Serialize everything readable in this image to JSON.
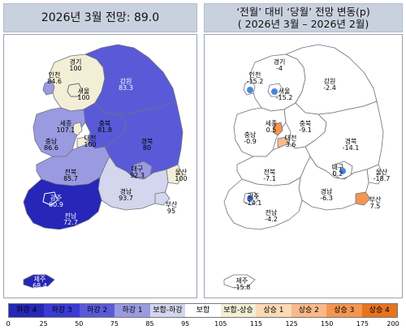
{
  "left_title": "2026년 3월 전망: 89.0",
  "right_title_line1": "‘전월’ 대비 ‘당월’ 전망 변동(p)",
  "right_title_line2": "( 2026년 3월 –   2026년 2월)",
  "colors": {
    "ha4": "#2626b8",
    "ha3": "#3a3ad4",
    "ha2": "#5a5ad8",
    "ha1": "#9a9ae0",
    "bh_ha": "#d3d6ec",
    "bh": "#ffffff",
    "bh_up": "#f3efd6",
    "up1": "#fbd9b5",
    "up2": "#f9b989",
    "up3": "#f59552",
    "up4": "#e8731e",
    "outline": "#7b7b8c",
    "label_blue": "#2f6fd6"
  },
  "legend": {
    "cells": [
      "하강 4",
      "하강 3",
      "하강 2",
      "하강 1",
      "보합-하강",
      "보합",
      "보합-상승",
      "상승 1",
      "상승 2",
      "상승 3",
      "상승 4"
    ],
    "ticks": [
      "0",
      "25",
      "50",
      "75",
      "85",
      "95",
      "105",
      "115",
      "125",
      "150",
      "175",
      "200"
    ]
  },
  "regions_left": {
    "incheon": {
      "name": "인천",
      "value": "84.6"
    },
    "seoul": {
      "name": "서울",
      "value": "100"
    },
    "gyeonggi": {
      "name": "경기",
      "value": "100"
    },
    "gangwon": {
      "name": "강원",
      "value": "83.3"
    },
    "sejong": {
      "name": "세종",
      "value": "107.1"
    },
    "chungbuk": {
      "name": "충북",
      "value": "81.8"
    },
    "chungnam": {
      "name": "충남",
      "value": "86.6"
    },
    "daejeon": {
      "name": "대전",
      "value": "100"
    },
    "gyeongbuk": {
      "name": "경북",
      "value": "80"
    },
    "daegu": {
      "name": "대구",
      "value": "92.3"
    },
    "jeonbuk": {
      "name": "전북",
      "value": "85.7"
    },
    "ulsan": {
      "name": "울산",
      "value": "100"
    },
    "gwangju": {
      "name": "광주",
      "value": "80.9"
    },
    "gyeongnam": {
      "name": "경남",
      "value": "93.7"
    },
    "busan": {
      "name": "부산",
      "value": "95"
    },
    "jeonnam": {
      "name": "전남",
      "value": "72.7"
    },
    "jeju": {
      "name": "제주",
      "value": "68.4"
    }
  },
  "regions_right": {
    "incheon": {
      "name": "인천",
      "value": "-15.2"
    },
    "seoul": {
      "name": "서울",
      "value": "-15.2"
    },
    "gyeonggi": {
      "name": "경기",
      "value": "-4"
    },
    "gangwon": {
      "name": "강원",
      "value": "-2.4"
    },
    "sejong": {
      "name": "세종",
      "value": "0.5"
    },
    "chungbuk": {
      "name": "충북",
      "value": "-9.1"
    },
    "chungnam": {
      "name": "충남",
      "value": "-0.9"
    },
    "daejeon": {
      "name": "대전",
      "value": "3.6"
    },
    "gyeongbuk": {
      "name": "경북",
      "value": "-14.1"
    },
    "daegu": {
      "name": "대구",
      "value": "0.2"
    },
    "jeonbuk": {
      "name": "전북",
      "value": "-7.1"
    },
    "ulsan": {
      "name": "울산",
      "value": "-18.7"
    },
    "gwangju": {
      "name": "광주",
      "value": "-14.1"
    },
    "gyeongnam": {
      "name": "경남",
      "value": "-6.3"
    },
    "busan": {
      "name": "부산",
      "value": "7.5"
    },
    "jeonnam": {
      "name": "전남",
      "value": "-4.2"
    },
    "jeju": {
      "name": "제주",
      "value": "-15.8"
    }
  }
}
